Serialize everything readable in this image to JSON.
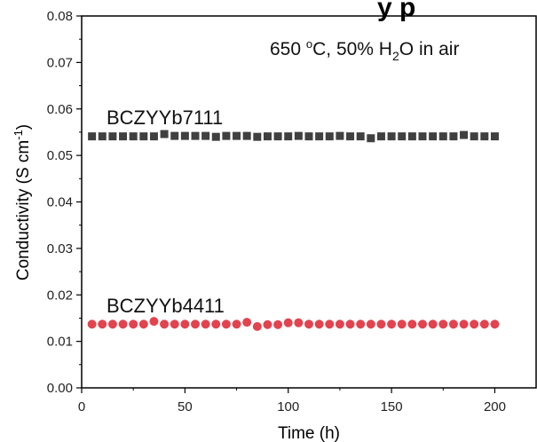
{
  "chart_data": {
    "type": "scatter",
    "title_clipped": "y p",
    "annotation": {
      "prefix": "650 ",
      "deg": "o",
      "mid": "C, 50% H",
      "sub": "2",
      "suffix": "O in air"
    },
    "xlabel": "Time (h)",
    "ylabel": {
      "main": "Conductivity (S cm",
      "sup": "-1",
      "close": ")"
    },
    "xlim": [
      0,
      220
    ],
    "ylim": [
      0,
      0.08
    ],
    "x_ticks": [
      0,
      50,
      100,
      150,
      200
    ],
    "x_tick_labels": [
      "0",
      "50",
      "100",
      "150",
      "200"
    ],
    "y_ticks": [
      0,
      0.01,
      0.02,
      0.03,
      0.04,
      0.05,
      0.06,
      0.07,
      0.08
    ],
    "y_tick_labels": [
      "0.00",
      "0.01",
      "0.02",
      "0.03",
      "0.04",
      "0.05",
      "0.06",
      "0.07",
      "0.08"
    ],
    "series": [
      {
        "name": "BCZYYb7111",
        "marker": "square",
        "color": "#404040",
        "x": [
          5,
          10,
          15,
          20,
          25,
          30,
          35,
          40,
          45,
          50,
          55,
          60,
          65,
          70,
          75,
          80,
          85,
          90,
          95,
          100,
          105,
          110,
          115,
          120,
          125,
          130,
          135,
          140,
          145,
          150,
          155,
          160,
          165,
          170,
          175,
          180,
          185,
          190,
          195,
          200
        ],
        "y": [
          0.0541,
          0.0541,
          0.0541,
          0.0541,
          0.0541,
          0.0541,
          0.0541,
          0.0546,
          0.0542,
          0.0542,
          0.0542,
          0.0542,
          0.054,
          0.0542,
          0.0542,
          0.0542,
          0.054,
          0.0541,
          0.0541,
          0.0541,
          0.0542,
          0.0541,
          0.0541,
          0.0541,
          0.0542,
          0.0541,
          0.0541,
          0.0537,
          0.0541,
          0.0541,
          0.0541,
          0.0541,
          0.0541,
          0.0541,
          0.0541,
          0.0541,
          0.0544,
          0.0541,
          0.0541,
          0.0541
        ]
      },
      {
        "name": "BCZYYb4411",
        "marker": "circle",
        "color": "#e2434f",
        "x": [
          5,
          10,
          15,
          20,
          25,
          30,
          35,
          40,
          45,
          50,
          55,
          60,
          65,
          70,
          75,
          80,
          85,
          90,
          95,
          100,
          105,
          110,
          115,
          120,
          125,
          130,
          135,
          140,
          145,
          150,
          155,
          160,
          165,
          170,
          175,
          180,
          185,
          190,
          195,
          200
        ],
        "y": [
          0.0137,
          0.0137,
          0.0137,
          0.0137,
          0.0137,
          0.0137,
          0.0143,
          0.0137,
          0.0137,
          0.0137,
          0.0137,
          0.0137,
          0.0137,
          0.0137,
          0.0137,
          0.0141,
          0.0132,
          0.0136,
          0.0136,
          0.014,
          0.014,
          0.0137,
          0.0137,
          0.0137,
          0.0137,
          0.0137,
          0.0137,
          0.0137,
          0.0137,
          0.0137,
          0.0137,
          0.0137,
          0.0137,
          0.0137,
          0.0137,
          0.0137,
          0.0137,
          0.0137,
          0.0137,
          0.0137
        ]
      }
    ]
  }
}
